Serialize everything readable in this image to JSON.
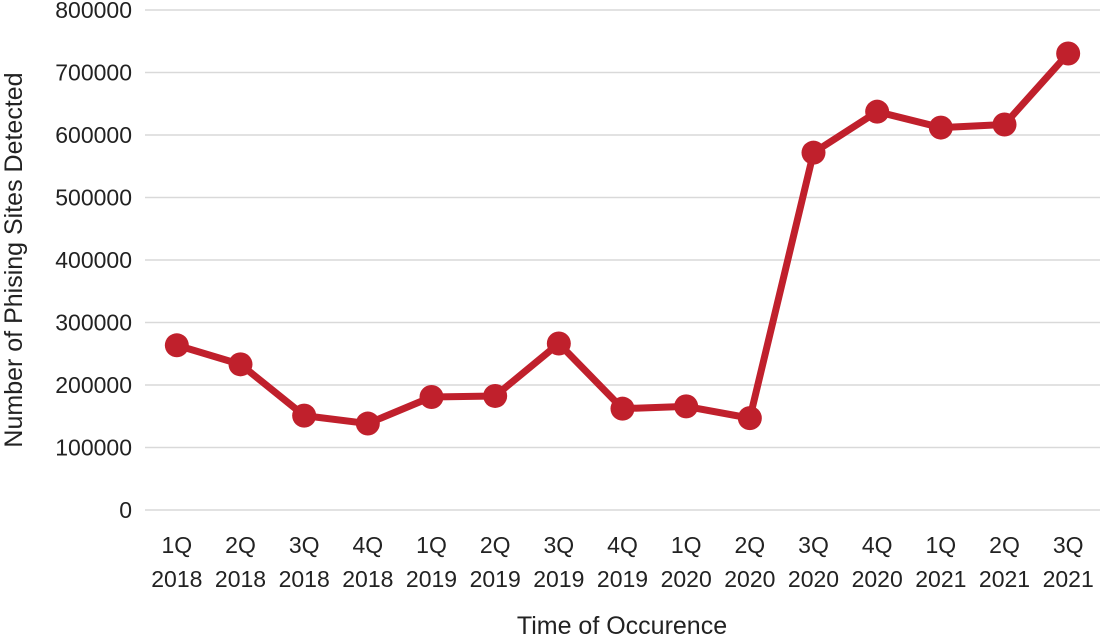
{
  "chart_data": {
    "type": "line",
    "title": "",
    "xlabel": "Time of Occurence",
    "ylabel": "Number of Phising Sites Detected",
    "categories": [
      [
        "1Q",
        "2018"
      ],
      [
        "2Q",
        "2018"
      ],
      [
        "3Q",
        "2018"
      ],
      [
        "4Q",
        "2018"
      ],
      [
        "1Q",
        "2019"
      ],
      [
        "2Q",
        "2019"
      ],
      [
        "3Q",
        "2019"
      ],
      [
        "4Q",
        "2019"
      ],
      [
        "1Q",
        "2020"
      ],
      [
        "2Q",
        "2020"
      ],
      [
        "3Q",
        "2020"
      ],
      [
        "4Q",
        "2020"
      ],
      [
        "1Q",
        "2021"
      ],
      [
        "2Q",
        "2021"
      ],
      [
        "3Q",
        "2021"
      ]
    ],
    "series": [
      {
        "values": [
          263538,
          233040,
          151014,
          138328,
          180768,
          182465,
          266387,
          162155,
          165772,
          146994,
          571732,
          637302,
          611877,
          616835,
          730372
        ]
      }
    ],
    "ylim": [
      0,
      800000
    ],
    "yticks": [
      0,
      100000,
      200000,
      300000,
      400000,
      500000,
      600000,
      700000,
      800000
    ],
    "grid": true,
    "legend": "none",
    "color": "#c0202c"
  }
}
